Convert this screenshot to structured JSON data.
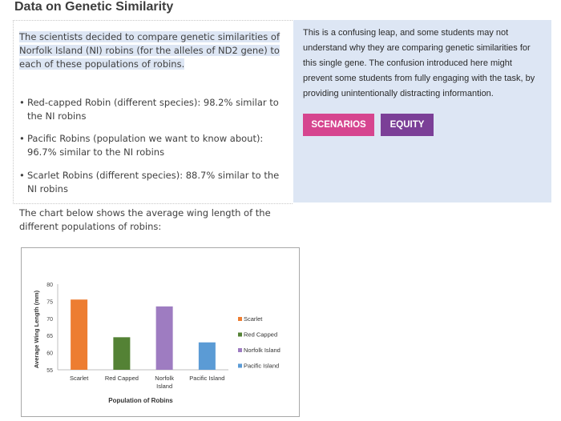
{
  "title": "Data on Genetic Similarity",
  "intro": "The scientists decided to compare genetic similarities of Norfolk Island (NI) robins (for the alleles of ND2 gene) to each of these populations of robins.",
  "bullets": [
    "Red-capped Robin (different species): 98.2% similar to the NI robins",
    "Pacific Robins (population we want to know about): 96.7% similar to the NI robins",
    "Scarlet Robins (different species): 88.7% similar to the NI robins"
  ],
  "note": "This is a confusing leap, and some students may not understand why they are comparing genetic similarities for this single gene. The confusion introduced here might prevent some students from fully engaging with the task, by providing unintentionally distracting informantion.",
  "tags": [
    "SCENARIOS",
    "EQUITY"
  ],
  "chart_intro": "The chart below shows the average wing length of the different populations of robins:",
  "colors": {
    "scenarios": "#d6458f",
    "equity": "#7b3f97",
    "panel": "#dde6f4"
  },
  "chart_data": {
    "type": "bar",
    "categories": [
      "Scarlet",
      "Red Capped",
      "Norfolk Island",
      "Pacific Island"
    ],
    "values": [
      75.5,
      64.5,
      73.5,
      63
    ],
    "colors": [
      "#ed7d31",
      "#548235",
      "#9e7cc1",
      "#5b9bd5"
    ],
    "title": "",
    "xlabel": "Population of Robins",
    "ylabel": "Average Wing Length (mm)",
    "ylim": [
      55,
      80
    ],
    "yticks": [
      "80",
      "75",
      "70",
      "65",
      "60",
      "55"
    ],
    "legend": [
      "Scarlet",
      "Red Capped",
      "Norfolk Island",
      "Pacific Island"
    ],
    "legend_position": "right"
  }
}
